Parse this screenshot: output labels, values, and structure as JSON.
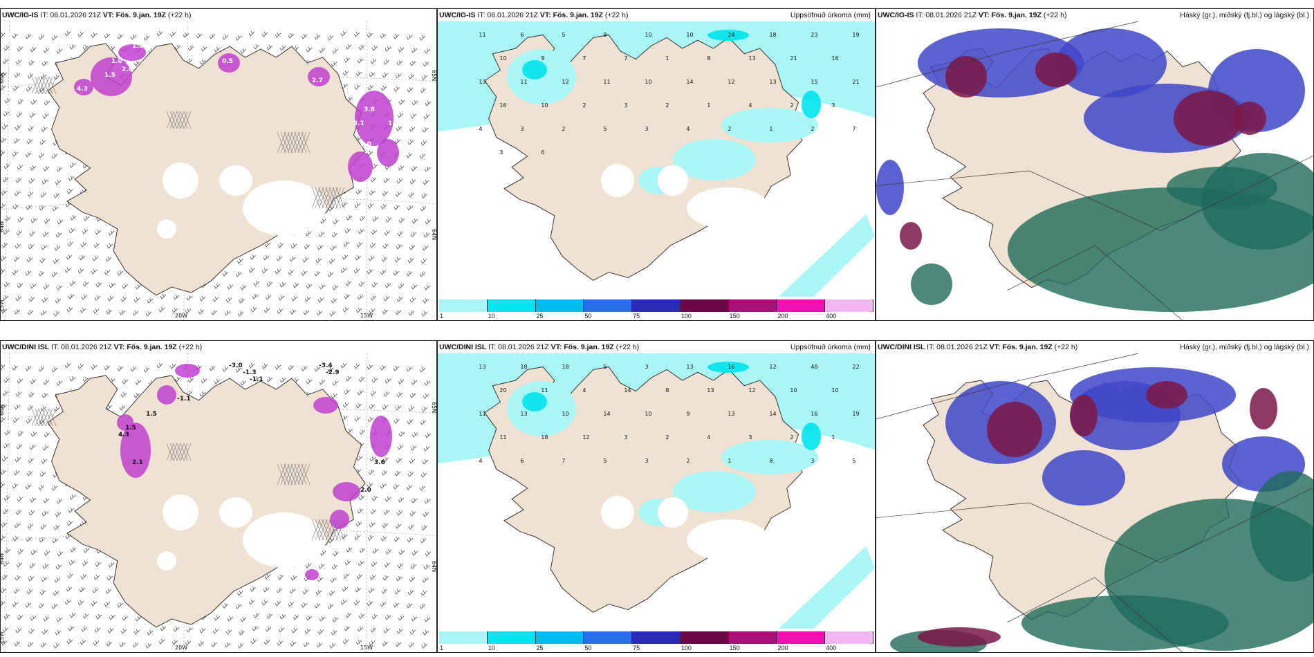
{
  "colors": {
    "land": "#efe2d2",
    "sea": "#ffffff",
    "precip_light": "#aaf6f6",
    "snow_magenta": "#c040d0",
    "cloud_high": "#1f6b5a",
    "cloud_mid": "#3f46c8",
    "cloud_low": "#7b1846"
  },
  "panels": [
    {
      "id": "top-left",
      "model": "UWC/IG-IS",
      "it": "IT: 08.01.2026 21Z",
      "vt_label": "VT:",
      "vt": "Fös. 9.jan. 19Z",
      "lead": "(+22 h)",
      "right_title": "",
      "lat_labels": [
        "66N",
        "64N"
      ],
      "lat_labels_right": [
        "65N",
        "64N"
      ],
      "lon_labels": [
        "20W",
        "15W"
      ],
      "corner_label": "25W",
      "values": [
        "1.5",
        "1.0",
        "2.0",
        "1.5",
        "0.5",
        "2.7",
        "4.3",
        "3.8",
        "3.1",
        "1.6",
        "2.0",
        "3.9"
      ]
    },
    {
      "id": "top-middle",
      "model": "UWC/IG-IS",
      "it": "IT: 08.01.2026 21Z",
      "vt_label": "VT:",
      "vt": "Fös. 9.jan. 19Z",
      "lead": "(+22 h)",
      "right_title": "Uppsöfnuð úrkoma (mm)",
      "values": [
        "11",
        "6",
        "5",
        "9",
        "10",
        "10",
        "24",
        "18",
        "23",
        "19",
        "10",
        "9",
        "7",
        "7",
        "1",
        "8",
        "13",
        "21",
        "16",
        "13",
        "11",
        "12",
        "11",
        "10",
        "14",
        "12",
        "13",
        "15",
        "21",
        "16",
        "10",
        "2",
        "3",
        "2",
        "1",
        "4",
        "2",
        "3",
        "4",
        "3",
        "2",
        "5",
        "3",
        "4",
        "2",
        "1",
        "2",
        "7",
        "3",
        "6"
      ]
    },
    {
      "id": "top-right",
      "model": "UWC/IG-IS",
      "it": "IT: 08.01.2026 21Z",
      "vt_label": "VT:",
      "vt": "Fös. 9.jan. 19Z",
      "lead": "(+22 h)",
      "right_title": "Háský (gr.), miðský (fj.bl.) og lágský (bl.)"
    },
    {
      "id": "bottom-left",
      "model": "UWC/DINI ISL",
      "it": "IT: 08.01.2026 21Z",
      "vt_label": "VT:",
      "vt": "Fös. 9.jan. 19Z",
      "lead": "(+22 h)",
      "right_title": "",
      "lat_labels": [
        "66N",
        "64N"
      ],
      "lat_labels_right": [
        "65N",
        "64N"
      ],
      "lon_labels": [
        "20W",
        "15W"
      ],
      "corner_label": "25W",
      "values": [
        "-3.0",
        "-3.4",
        "-2.9",
        "-1.1",
        "-1.1",
        "-1.3",
        "1.5",
        "4.3",
        "2.1",
        "3.6",
        "2.0",
        "1.5"
      ]
    },
    {
      "id": "bottom-middle",
      "model": "UWC/DINI ISL",
      "it": "IT: 08.01.2026 21Z",
      "vt_label": "VT:",
      "vt": "Fös. 9.jan. 19Z",
      "lead": "(+22 h)",
      "right_title": "Uppsöfnuð úrkoma (mm)",
      "values": [
        "13",
        "18",
        "18",
        "5",
        "3",
        "13",
        "16",
        "12",
        "48",
        "22",
        "20",
        "11",
        "4",
        "14",
        "8",
        "13",
        "12",
        "10",
        "10",
        "11",
        "13",
        "10",
        "14",
        "10",
        "9",
        "13",
        "14",
        "16",
        "19",
        "11",
        "18",
        "12",
        "3",
        "2",
        "4",
        "3",
        "2",
        "1",
        "4",
        "6",
        "7",
        "5",
        "3",
        "2",
        "1",
        "8",
        "3",
        "5"
      ]
    },
    {
      "id": "bottom-right",
      "model": "UWC/DINI ISL",
      "it": "IT: 08.01.2026 21Z",
      "vt_label": "VT:",
      "vt": "Fös. 9.jan. 19Z",
      "lead": "(+22 h)",
      "right_title": "Háský (gr.), miðský (fj.bl.) og lágský (bl.)"
    }
  ],
  "colorbar": {
    "ticks": [
      "1",
      "10",
      "25",
      "50",
      "75",
      "100",
      "150",
      "200",
      "400"
    ],
    "colors": [
      "#aaf6f6",
      "#00e4ee",
      "#00bcee",
      "#2a6fe8",
      "#2a2ab4",
      "#6a0646",
      "#a8107a",
      "#ee10b0",
      "#f2b6f0"
    ]
  }
}
